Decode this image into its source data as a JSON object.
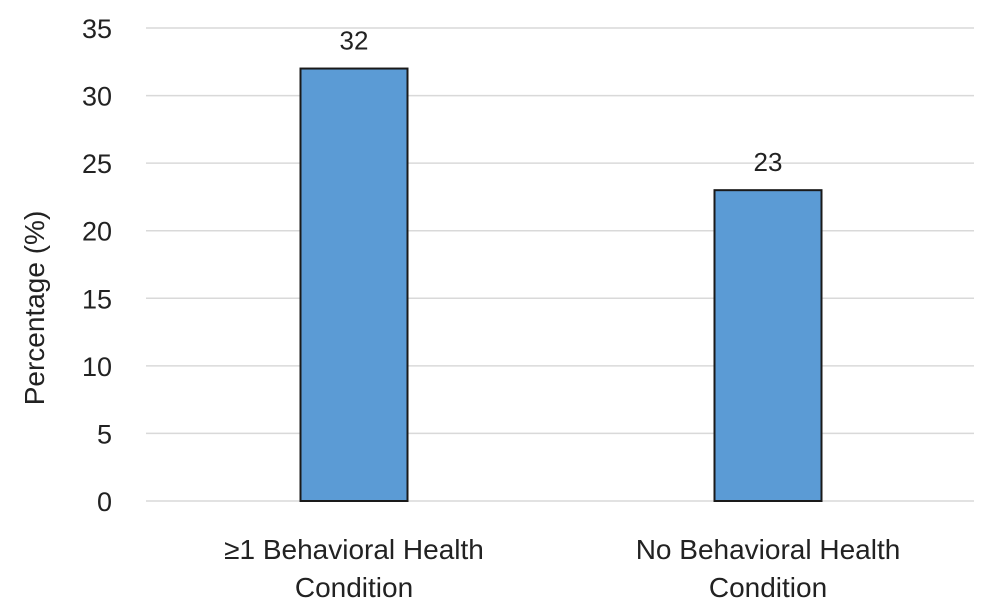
{
  "chart_data": {
    "type": "bar",
    "categories": [
      [
        "≥1 Behavioral Health",
        "Condition"
      ],
      [
        "No Behavioral Health",
        "Condition"
      ]
    ],
    "values": [
      32,
      23
    ],
    "data_labels": [
      "32",
      "23"
    ],
    "yticks": [
      "0",
      "5",
      "10",
      "15",
      "20",
      "25",
      "30",
      "35"
    ],
    "title": "",
    "xlabel": "",
    "ylabel": "Percentage (%)",
    "ylim": [
      0,
      35
    ],
    "grid": true,
    "bar_color": "#5b9bd5"
  }
}
